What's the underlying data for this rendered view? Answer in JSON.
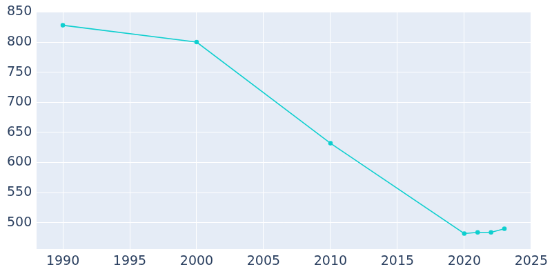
{
  "chart_data": {
    "type": "line",
    "x": [
      1990,
      2000,
      2010,
      2020,
      2021,
      2022,
      2023
    ],
    "values": [
      828,
      800,
      632,
      482,
      484,
      484,
      490
    ],
    "color": "#0fcfcf",
    "marker": "circle",
    "xlim": [
      1988,
      2025
    ],
    "xticks": [
      1990,
      1995,
      2000,
      2005,
      2010,
      2015,
      2020,
      2025
    ],
    "ylim": [
      456,
      850
    ],
    "yticks": [
      500,
      550,
      600,
      650,
      700,
      750,
      800,
      850
    ],
    "grid": true
  }
}
